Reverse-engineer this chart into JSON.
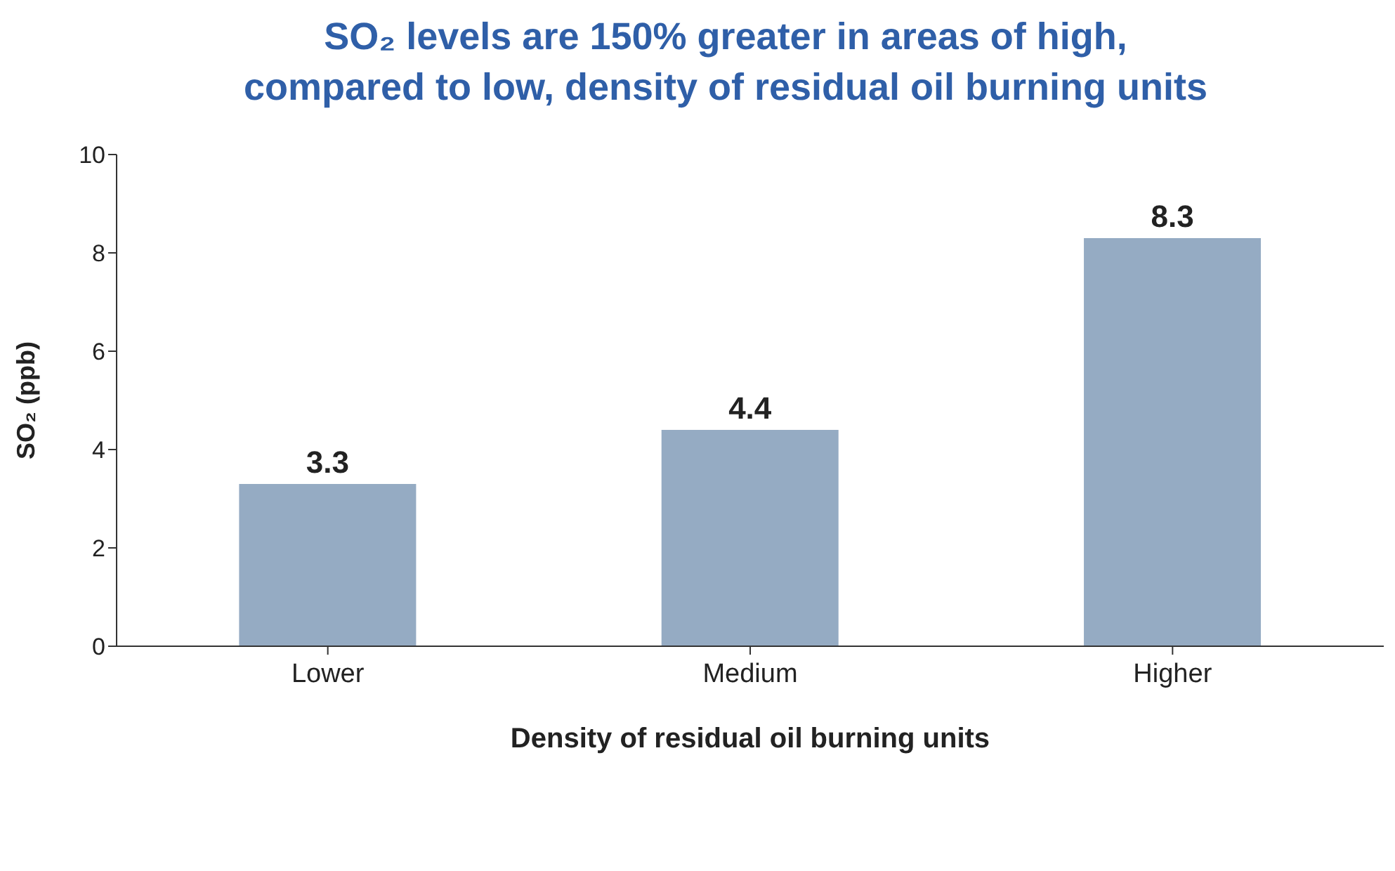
{
  "chart_data": {
    "type": "bar",
    "title": "SO₂ levels are 150% greater in areas of high,\ncompared to low, density of residual oil burning units",
    "xlabel": "Density of residual oil burning units",
    "ylabel": "SO₂ (ppb)",
    "categories": [
      "Lower",
      "Medium",
      "Higher"
    ],
    "values": [
      3.3,
      4.4,
      8.3
    ],
    "color": "#95abc3",
    "ylim": [
      0,
      10
    ],
    "yticks": [
      0,
      2,
      4,
      6,
      8,
      10
    ],
    "grid": false,
    "data_labels": true
  }
}
